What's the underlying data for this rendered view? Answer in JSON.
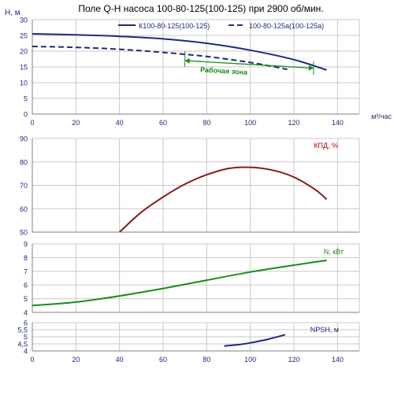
{
  "title": "Поле Q-H насоса 100-80-125(100-125) при 2900 об/мин.",
  "colors": {
    "hq_main": "#1f2a7a",
    "hq_alt": "#1f2a7a",
    "kpd": "#8b1a1a",
    "power": "#1a8a1a",
    "npsh": "#1f2a7a",
    "work_zone": "#1a8a1a",
    "grid": "#c8c8c8",
    "axis_text": "#1f2a7a",
    "ylabel_red": "#c00000"
  },
  "chart_data": [
    {
      "type": "line",
      "panel": "hq",
      "ylabel": "H, м",
      "xlabel": "м³/час",
      "xlim": [
        0,
        150
      ],
      "ylim": [
        0,
        30
      ],
      "x_ticks": [
        0,
        20,
        40,
        60,
        80,
        100,
        120,
        140
      ],
      "y_ticks": [
        0,
        5,
        10,
        15,
        20,
        25,
        30
      ],
      "legend_position": "top-right",
      "series": [
        {
          "name": "К100-80-125(100-125)",
          "style": "solid",
          "x": [
            0,
            20,
            40,
            60,
            80,
            100,
            120,
            135
          ],
          "y": [
            25.5,
            25.2,
            24.7,
            23.9,
            22.5,
            20.3,
            17.3,
            14.0
          ]
        },
        {
          "name": "100-80-125а(100-125а)",
          "style": "dashed",
          "x": [
            0,
            20,
            40,
            60,
            80,
            100,
            117
          ],
          "y": [
            21.5,
            21.2,
            20.6,
            19.6,
            18.3,
            16.4,
            14.2
          ]
        }
      ],
      "work_zone": {
        "label": "Рабочая зона",
        "left": {
          "x": 70,
          "y": 17
        },
        "right": {
          "x": 129,
          "y": 14.6
        },
        "vertical_left": {
          "x": 70,
          "y_from": 20,
          "y_to": 15
        },
        "vertical_right": {
          "x": 129,
          "y_from": 16.7,
          "y_to": 12.5
        }
      }
    },
    {
      "type": "line",
      "panel": "kpd",
      "ylabel": "КПД, %",
      "xlim": [
        0,
        150
      ],
      "ylim": [
        50,
        90
      ],
      "y_ticks": [
        50,
        60,
        70,
        80,
        90
      ],
      "series": [
        {
          "name": "КПД",
          "x": [
            40,
            50,
            60,
            70,
            80,
            90,
            100,
            110,
            120,
            130,
            135
          ],
          "y": [
            50,
            58.5,
            65,
            70.5,
            74.5,
            77.2,
            77.7,
            76.5,
            73.5,
            68,
            64
          ]
        }
      ]
    },
    {
      "type": "line",
      "panel": "power",
      "ylabel": "N, кВт",
      "xlim": [
        0,
        150
      ],
      "ylim": [
        4,
        9
      ],
      "y_ticks": [
        4,
        5,
        6,
        7,
        8,
        9
      ],
      "series": [
        {
          "name": "N",
          "x": [
            0,
            20,
            40,
            60,
            80,
            100,
            120,
            135
          ],
          "y": [
            4.5,
            4.75,
            5.2,
            5.75,
            6.35,
            6.95,
            7.45,
            7.8
          ]
        }
      ]
    },
    {
      "type": "line",
      "panel": "npsh",
      "ylabel": "NPSH, м",
      "xlim": [
        0,
        150
      ],
      "ylim": [
        4,
        6
      ],
      "x_ticks": [
        0,
        20,
        40,
        60,
        80,
        100,
        120,
        140
      ],
      "y_ticks": [
        4,
        4.5,
        5,
        5.5,
        6
      ],
      "y_tick_labels": [
        "4",
        "4,5",
        "5",
        "5,5",
        "6"
      ],
      "series": [
        {
          "name": "NPSH",
          "x": [
            88,
            95,
            100,
            105,
            110,
            116
          ],
          "y": [
            4.35,
            4.45,
            4.57,
            4.72,
            4.9,
            5.15
          ]
        }
      ]
    }
  ]
}
